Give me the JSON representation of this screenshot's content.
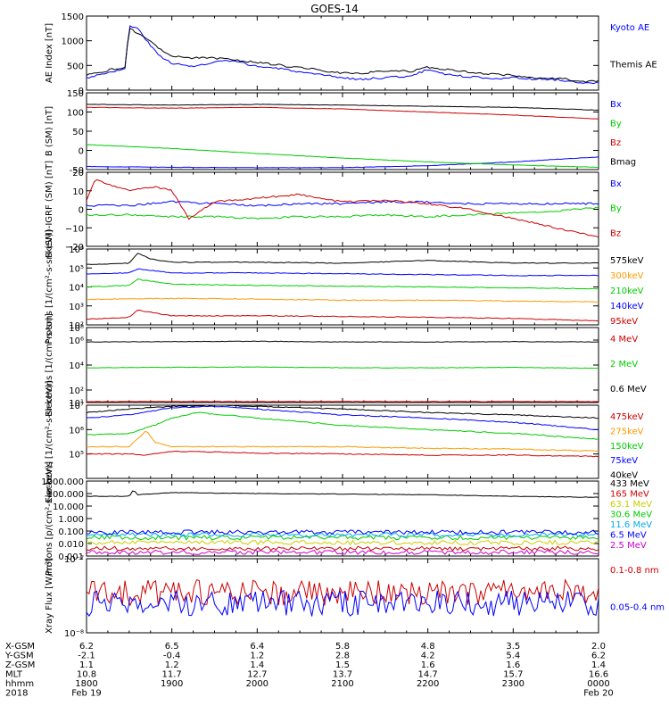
{
  "title": "GOES-14",
  "colors": {
    "black": "#000000",
    "blue": "#0000ff",
    "green": "#00cc00",
    "red": "#cc0000",
    "orange": "#ff9900",
    "yellow": "#cccc00",
    "cyan": "#00aaee",
    "magenta": "#cc00cc"
  },
  "chart_data": [
    {
      "type": "line",
      "id": "ae",
      "ylabel": "AE Index [nT]",
      "ylim": [
        0,
        1500
      ],
      "scale": "linear",
      "yticks": [
        0,
        500,
        1000,
        1500
      ],
      "ytick_labels": [
        "0",
        "500",
        "1000",
        "1500"
      ],
      "series": [
        {
          "name": "Kyoto AE",
          "color": "blue",
          "x": [
            0,
            0.3,
            0.45,
            0.5,
            0.6,
            0.75,
            0.85,
            1.0,
            1.2,
            1.4,
            1.6,
            1.8,
            2.0,
            2.2,
            2.4,
            2.6,
            2.8,
            3.0,
            3.2,
            3.4,
            3.6,
            3.8,
            4.0,
            4.2,
            4.4,
            4.6,
            4.8,
            5.0,
            5.2,
            5.4,
            5.6,
            5.8,
            6.0
          ],
          "y": [
            250,
            380,
            420,
            1300,
            1250,
            900,
            700,
            550,
            480,
            520,
            600,
            560,
            480,
            450,
            400,
            330,
            300,
            250,
            220,
            240,
            270,
            280,
            420,
            330,
            280,
            260,
            240,
            250,
            230,
            220,
            200,
            130,
            150
          ]
        },
        {
          "name": "Themis AE",
          "color": "black",
          "x": [
            0,
            0.3,
            0.45,
            0.5,
            0.6,
            0.75,
            0.85,
            1.0,
            1.2,
            1.4,
            1.6,
            1.8,
            2.0,
            2.2,
            2.4,
            2.6,
            2.8,
            3.0,
            3.2,
            3.4,
            3.6,
            3.8,
            4.0,
            4.2,
            4.4,
            4.6,
            4.8,
            5.0,
            5.2,
            5.4,
            5.6,
            5.8,
            6.0
          ],
          "y": [
            300,
            420,
            450,
            1250,
            1150,
            1000,
            850,
            700,
            650,
            660,
            640,
            600,
            560,
            520,
            470,
            440,
            380,
            350,
            330,
            380,
            390,
            380,
            470,
            420,
            380,
            340,
            320,
            300,
            260,
            240,
            230,
            170,
            180
          ]
        }
      ]
    },
    {
      "type": "line",
      "id": "bsm",
      "ylabel": "B (SM) [nT]",
      "ylim": [
        -50,
        150
      ],
      "scale": "linear",
      "yticks": [
        -50,
        0,
        50,
        100,
        150
      ],
      "ytick_labels": [
        "-50",
        "0",
        "50",
        "100",
        "150"
      ],
      "series": [
        {
          "name": "Bx",
          "color": "blue",
          "x": [
            0,
            1,
            2,
            3,
            4,
            5,
            6
          ],
          "y": [
            -42,
            -44,
            -45,
            -45,
            -40,
            -30,
            -17
          ]
        },
        {
          "name": "By",
          "color": "green",
          "x": [
            0,
            1,
            2,
            3,
            4,
            5,
            6
          ],
          "y": [
            15,
            5,
            -8,
            -20,
            -30,
            -38,
            -44
          ]
        },
        {
          "name": "Bz",
          "color": "red",
          "x": [
            0,
            1,
            2,
            3,
            4,
            5,
            6
          ],
          "y": [
            112,
            110,
            112,
            108,
            100,
            92,
            82
          ]
        },
        {
          "name": "Bmag",
          "color": "black",
          "x": [
            0,
            1,
            2,
            3,
            4,
            5,
            6
          ],
          "y": [
            120,
            118,
            120,
            118,
            115,
            112,
            105
          ]
        }
      ]
    },
    {
      "type": "line",
      "id": "bigrf",
      "ylabel": "B (SM)-IGRF (SM) [nT]",
      "ylim": [
        -20,
        20
      ],
      "scale": "linear",
      "yticks": [
        -20,
        -10,
        0,
        10,
        20
      ],
      "ytick_labels": [
        "−20",
        "−10",
        "0",
        "10",
        "20"
      ],
      "series": [
        {
          "name": "Bx",
          "color": "blue",
          "x": [
            0,
            0.5,
            1,
            1.5,
            2,
            2.5,
            3,
            3.5,
            4,
            4.5,
            5,
            5.5,
            6
          ],
          "y": [
            2,
            2,
            4,
            3,
            2,
            3,
            3,
            4,
            4,
            3,
            3,
            3,
            3
          ]
        },
        {
          "name": "By",
          "color": "green",
          "x": [
            0,
            0.5,
            1,
            1.5,
            2,
            2.5,
            3,
            3.5,
            4,
            4.5,
            5,
            5.5,
            6
          ],
          "y": [
            -3,
            -3,
            -4,
            -4,
            -5,
            -4,
            -4,
            -3,
            -4,
            -3,
            -2,
            -1,
            1
          ]
        },
        {
          "name": "Bz",
          "color": "red",
          "x": [
            0,
            0.1,
            0.5,
            0.8,
            1.0,
            1.2,
            1.5,
            2.0,
            2.5,
            3.0,
            3.5,
            4.0,
            4.5,
            5.0,
            5.5,
            6.0
          ],
          "y": [
            5,
            16,
            10,
            12,
            10,
            -5,
            4,
            6,
            8,
            4,
            5,
            3,
            0,
            -5,
            -10,
            -15
          ]
        }
      ]
    },
    {
      "type": "line",
      "id": "protons1",
      "ylabel": "Protons [1/(cm²-s-sr-keV)]",
      "ylim": [
        100,
        1000000
      ],
      "scale": "log",
      "yticks": [
        100,
        1000,
        10000,
        100000,
        1000000
      ],
      "ytick_labels": [
        "10²",
        "10³",
        "10⁴",
        "10⁵",
        "10⁶"
      ],
      "series": [
        {
          "name": "575keV",
          "color": "black",
          "x": [
            0,
            0.5,
            0.6,
            0.75,
            1,
            2,
            3,
            4,
            5,
            6
          ],
          "y": [
            150000,
            180000,
            600000,
            300000,
            200000,
            200000,
            180000,
            250000,
            180000,
            180000
          ]
        },
        {
          "name": "300keV",
          "color": "orange",
          "x": [
            0,
            1,
            2,
            3,
            4,
            5,
            6
          ],
          "y": [
            2200,
            2500,
            2300,
            2000,
            2000,
            1800,
            1600
          ]
        },
        {
          "name": "210keV",
          "color": "green",
          "x": [
            0,
            0.5,
            0.6,
            1,
            2,
            3,
            4,
            5,
            6
          ],
          "y": [
            10000,
            12000,
            25000,
            14000,
            12000,
            11000,
            10000,
            9000,
            8000
          ]
        },
        {
          "name": "140keV",
          "color": "blue",
          "x": [
            0,
            0.5,
            0.6,
            1,
            2,
            3,
            4,
            5,
            6
          ],
          "y": [
            50000,
            55000,
            90000,
            55000,
            55000,
            50000,
            45000,
            40000,
            40000
          ]
        },
        {
          "name": "95keV",
          "color": "red",
          "x": [
            0,
            0.5,
            0.6,
            1,
            2,
            3,
            4,
            5,
            6
          ],
          "y": [
            200,
            250,
            600,
            300,
            300,
            280,
            250,
            220,
            160
          ]
        }
      ]
    },
    {
      "type": "line",
      "id": "electrons1",
      "ylabel": "Electrons [1/(cm²-s-sr)]",
      "ylim": [
        10,
        10000000
      ],
      "scale": "log",
      "yticks": [
        10,
        100,
        10000,
        1000000
      ],
      "ytick_labels": [
        "10¹",
        "10²",
        "10⁴",
        "10⁶"
      ],
      "extra_ticks": [
        {
          "v": 10000000,
          "label": "10⁸"
        }
      ],
      "series": [
        {
          "name": "4 MeV",
          "color": "red",
          "x": [
            0,
            1,
            2,
            3,
            4,
            5,
            6
          ],
          "y": [
            12,
            12,
            12,
            12,
            12,
            12,
            12
          ]
        },
        {
          "name": "2 MeV",
          "color": "green",
          "x": [
            0,
            1,
            2,
            3,
            4,
            5,
            6
          ],
          "y": [
            6000,
            6500,
            7000,
            6000,
            6000,
            6500,
            5500
          ]
        },
        {
          "name": "0.6 MeV",
          "color": "black",
          "x": [
            0,
            1,
            2,
            3,
            4,
            5,
            6
          ],
          "y": [
            700000,
            750000,
            800000,
            700000,
            700000,
            750000,
            700000
          ]
        }
      ]
    },
    {
      "type": "line",
      "id": "electrons2",
      "ylabel": "Electrons [1/(cm²-s-sr-keV)]",
      "ylim": [
        10000,
        10000000
      ],
      "scale": "log",
      "yticks": [
        100000,
        1000000,
        10000000
      ],
      "ytick_labels": [
        "10⁵",
        "10⁶",
        "10⁷"
      ],
      "series": [
        {
          "name": "475keV",
          "color": "red",
          "x": [
            0,
            0.5,
            0.7,
            1,
            2,
            3,
            4,
            5,
            6
          ],
          "y": [
            100000,
            100000,
            90000,
            130000,
            110000,
            100000,
            90000,
            90000,
            80000
          ]
        },
        {
          "name": "275keV",
          "color": "orange",
          "x": [
            0,
            0.5,
            0.7,
            0.8,
            1,
            2,
            3,
            4,
            5,
            6
          ],
          "y": [
            200000,
            200000,
            900000,
            300000,
            200000,
            200000,
            200000,
            170000,
            160000,
            130000
          ]
        },
        {
          "name": "150keV",
          "color": "green",
          "x": [
            0,
            0.5,
            0.8,
            1,
            1.3,
            2,
            3,
            4,
            5,
            6
          ],
          "y": [
            600000,
            700000,
            1500000,
            3000000,
            5000000,
            3000000,
            1500000,
            1000000,
            700000,
            400000
          ]
        },
        {
          "name": "75keV",
          "color": "blue",
          "x": [
            0,
            0.5,
            0.8,
            1,
            1.5,
            2,
            3,
            4,
            5,
            6
          ],
          "y": [
            3000000,
            4000000,
            6000000,
            8000000,
            9000000,
            7000000,
            4000000,
            3000000,
            2000000,
            1000000
          ]
        },
        {
          "name": "40keV",
          "color": "black",
          "x": [
            0,
            0.5,
            0.8,
            1,
            1.5,
            2,
            3,
            4,
            5,
            6
          ],
          "y": [
            5000000,
            7000000,
            8000000,
            9000000,
            10000000,
            9000000,
            7000000,
            5000000,
            4000000,
            3000000
          ]
        }
      ]
    },
    {
      "type": "line",
      "id": "protons2",
      "ylabel": "Protons [p/(cm²-s-sr-keV)]",
      "ylim": [
        0.001,
        1000
      ],
      "scale": "log",
      "yticks": [
        0.001,
        0.01,
        0.1,
        1.0,
        10.0,
        100.0,
        1000.0
      ],
      "ytick_labels": [
        "0.001",
        "0.010",
        "0.100",
        "1.000",
        "10.000",
        "100.000",
        "1000.000"
      ],
      "series": [
        {
          "name": "433 MeV",
          "color": "black",
          "x": [
            0,
            0.5,
            0.55,
            0.6,
            1,
            2,
            3,
            4,
            5,
            6
          ],
          "y": [
            60,
            60,
            200,
            80,
            120,
            100,
            90,
            80,
            60,
            50
          ]
        },
        {
          "name": "165 MeV",
          "color": "red",
          "x": [
            0,
            6
          ],
          "y": [
            0.004,
            0.004
          ]
        },
        {
          "name": "63.1 MeV",
          "color": "yellow",
          "x": [
            0,
            6
          ],
          "y": [
            0.012,
            0.012
          ]
        },
        {
          "name": "30.6 MeV",
          "color": "green",
          "x": [
            0,
            6
          ],
          "y": [
            0.03,
            0.03
          ]
        },
        {
          "name": "11.6 MeV",
          "color": "cyan",
          "x": [
            0,
            6
          ],
          "y": [
            0.05,
            0.05
          ]
        },
        {
          "name": "6.5 MeV",
          "color": "blue",
          "x": [
            0,
            6
          ],
          "y": [
            0.08,
            0.08
          ]
        },
        {
          "name": "2.5 MeV",
          "color": "magenta",
          "x": [
            0,
            6
          ],
          "y": [
            0.002,
            0.002
          ]
        }
      ]
    },
    {
      "type": "line",
      "id": "xray",
      "ylabel": "Xray Flux [W/m²]",
      "ylim": [
        1e-08,
        1e-07
      ],
      "scale": "log",
      "yticks": [
        1e-08,
        1e-07
      ],
      "ytick_labels": [
        "10⁻⁸",
        "10⁻⁷"
      ],
      "series": [
        {
          "name": "0.1-0.8 nm",
          "color": "red",
          "x": [
            0,
            6
          ],
          "y": [
            3.5e-08,
            3.5e-08
          ]
        },
        {
          "name": "0.05-0.4 nm",
          "color": "blue",
          "x": [
            0,
            6
          ],
          "y": [
            2.5e-08,
            2.5e-08
          ]
        }
      ]
    }
  ],
  "x_axis": {
    "row_labels": [
      "X-GSM",
      "Y-GSM",
      "Z-GSM",
      "MLT",
      "hhmm",
      "2018"
    ],
    "columns": [
      {
        "x": 0,
        "values": [
          "6.2",
          "-2.1",
          "1.1",
          "10.8",
          "1800",
          "Feb 19"
        ]
      },
      {
        "x": 1,
        "values": [
          "6.5",
          "-0.4",
          "1.2",
          "11.7",
          "1900",
          ""
        ]
      },
      {
        "x": 2,
        "values": [
          "6.4",
          "1.2",
          "1.4",
          "12.7",
          "2000",
          ""
        ]
      },
      {
        "x": 3,
        "values": [
          "5.8",
          "2.8",
          "1.5",
          "13.7",
          "2100",
          ""
        ]
      },
      {
        "x": 4,
        "values": [
          "4.8",
          "4.2",
          "1.6",
          "14.7",
          "2200",
          ""
        ]
      },
      {
        "x": 5,
        "values": [
          "3.5",
          "5.4",
          "1.6",
          "15.7",
          "2300",
          ""
        ]
      },
      {
        "x": 6,
        "values": [
          "2.0",
          "6.2",
          "1.4",
          "16.6",
          "0000",
          "Feb 20"
        ]
      }
    ]
  }
}
